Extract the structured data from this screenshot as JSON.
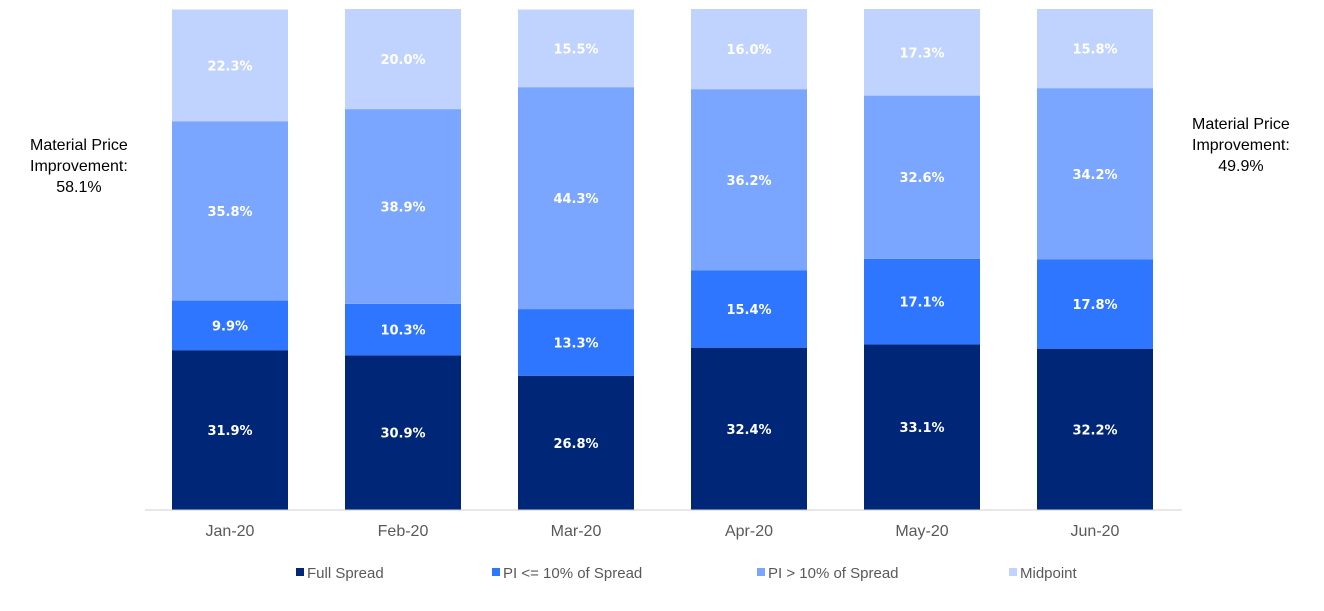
{
  "chart_data": {
    "type": "bar",
    "stacked": true,
    "categories": [
      "Jan-20",
      "Feb-20",
      "Mar-20",
      "Apr-20",
      "May-20",
      "Jun-20"
    ],
    "series": [
      {
        "name": "Full Spread",
        "color": "#002677",
        "values": [
          31.9,
          30.9,
          26.8,
          32.4,
          33.1,
          32.2
        ]
      },
      {
        "name": "PI <= 10% of Spread",
        "color": "#2e75ff",
        "values": [
          9.9,
          10.3,
          13.3,
          15.4,
          17.1,
          17.8
        ]
      },
      {
        "name": "PI > 10% of Spread",
        "color": "#7aa6ff",
        "values": [
          35.8,
          38.9,
          44.3,
          36.2,
          32.6,
          34.2
        ]
      },
      {
        "name": "Midpoint",
        "color": "#c0d3ff",
        "values": [
          22.3,
          20.0,
          15.5,
          16.0,
          17.3,
          15.8
        ]
      }
    ],
    "data_label_suffix": "%",
    "ylim": [
      0,
      100
    ],
    "grid": false,
    "legend": "bottom",
    "annotations": [
      {
        "category": "Jan-20",
        "lines": [
          "Material Price",
          "Improvement:",
          "58.1%"
        ]
      },
      {
        "category": "Jun-20",
        "lines": [
          "Material Price",
          "Improvement:",
          "49.9%"
        ]
      }
    ]
  }
}
